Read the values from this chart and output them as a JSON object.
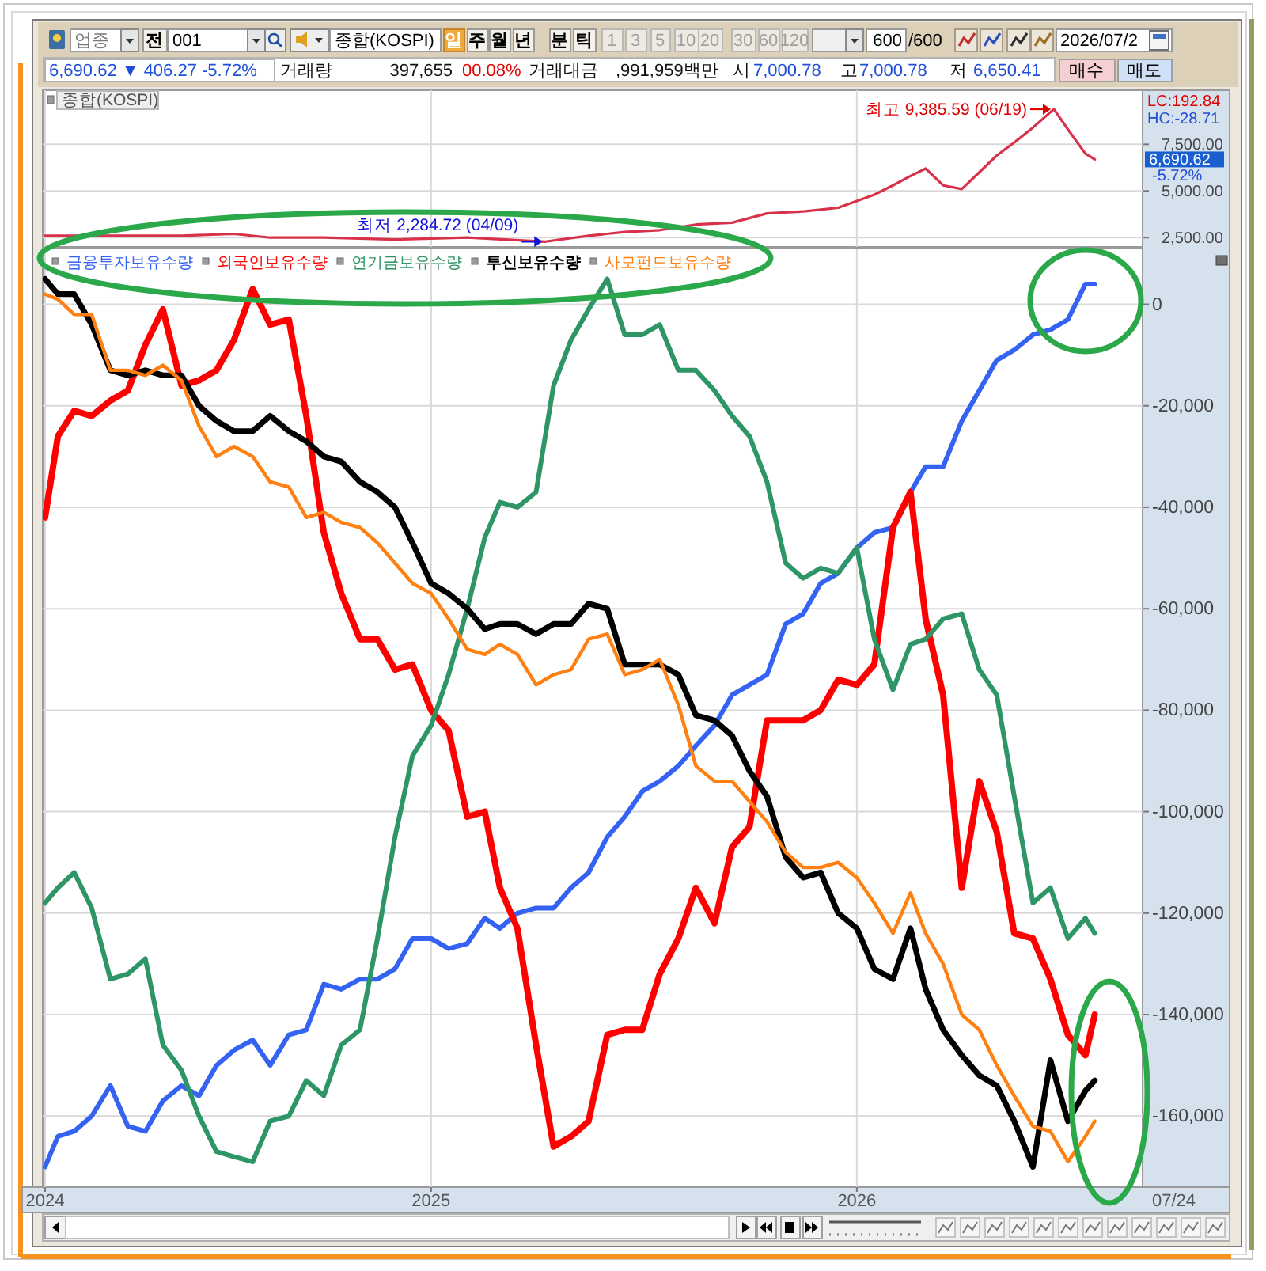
{
  "chart_data": [
    {
      "type": "line",
      "title": "종합(KOSPI)",
      "x": [
        "2024-02-05",
        "2024-04-01",
        "2024-06-01",
        "2024-07-16",
        "2024-08-16",
        "2024-10-01",
        "2024-12-01",
        "2025-02-01",
        "2025-04-09",
        "2025-05-16",
        "2025-06-16",
        "2025-07-16",
        "2025-08-16",
        "2025-09-16",
        "2025-10-16",
        "2025-11-16",
        "2025-12-16",
        "2026-01-16",
        "2026-02-01",
        "2026-02-16",
        "2026-03-01",
        "2026-03-16",
        "2026-04-01",
        "2026-04-16",
        "2026-05-01",
        "2026-05-16",
        "2026-06-01",
        "2026-06-19",
        "2026-07-01",
        "2026-07-16",
        "2026-07-24"
      ],
      "series": [
        {
          "color": "#d8314a",
          "values": [
            2600,
            2600,
            2600,
            2700,
            2500,
            2500,
            2400,
            2500,
            2284.72,
            2600,
            2800,
            2900,
            3200,
            3300,
            3800,
            3900,
            4100,
            4800,
            5300,
            5800,
            6200,
            5300,
            5100,
            6000,
            6900,
            7600,
            8400,
            9385.59,
            8300,
            7000,
            6690.62
          ]
        }
      ],
      "xlim": [
        "2024-02-03",
        "2026-09-03"
      ],
      "xticks": [
        {
          "value": "2024-02-05",
          "label": null
        },
        {
          "value": "2025-01-01",
          "label": null
        },
        {
          "value": "2026-01-01",
          "label": null
        }
      ],
      "ylim": [
        2000,
        10400
      ],
      "yticks": [
        {
          "value": 2500,
          "label": "2,500.00"
        },
        {
          "value": 5000,
          "label": "5,000.00"
        },
        {
          "value": 7500,
          "label": "7,500.00"
        }
      ],
      "grid": true,
      "tick_labels": "y",
      "annotations": [
        "업종",
        "전",
        "001",
        "종합(KOSPI)",
        "일",
        "주",
        "월",
        "년",
        "분",
        "틱",
        "1",
        "3",
        "5",
        "10",
        "20",
        "30",
        "60",
        "120",
        "600",
        "/600",
        "2026/07/2",
        "6,690.62 ▼ 406.27 -5.72%",
        "거래량",
        "397,655",
        "00.08%",
        "거래대금",
        ",991,959백만",
        "시",
        "7,000.78",
        "고",
        "7,000.78",
        "저",
        "6,650.41",
        "매수",
        "매도",
        "LC:192.84",
        "HC:-28.71",
        "6,690.62",
        "-5.72%",
        {
          "text": "최고 9,385.59 (06/19)",
          "x": "2026-06-19",
          "y": 9385.59
        },
        {
          "text": "최저 2,284.72 (04/09)",
          "x": "2025-04-09",
          "y": 2284.72
        }
      ]
    },
    {
      "type": "line",
      "x": [
        "2024-02-05",
        "2024-02-16",
        "2024-03-01",
        "2024-03-16",
        "2024-04-01",
        "2024-04-16",
        "2024-05-01",
        "2024-05-16",
        "2024-06-01",
        "2024-06-16",
        "2024-07-01",
        "2024-07-16",
        "2024-08-01",
        "2024-08-16",
        "2024-09-01",
        "2024-09-16",
        "2024-10-01",
        "2024-10-16",
        "2024-11-01",
        "2024-11-16",
        "2024-12-01",
        "2024-12-16",
        "2025-01-01",
        "2025-01-16",
        "2025-02-01",
        "2025-02-16",
        "2025-03-01",
        "2025-03-16",
        "2025-04-01",
        "2025-04-16",
        "2025-05-01",
        "2025-05-16",
        "2025-06-01",
        "2025-06-16",
        "2025-07-01",
        "2025-07-16",
        "2025-08-01",
        "2025-08-16",
        "2025-09-01",
        "2025-09-16",
        "2025-10-01",
        "2025-10-16",
        "2025-11-01",
        "2025-11-16",
        "2025-12-01",
        "2025-12-16",
        "2026-01-01",
        "2026-01-16",
        "2026-02-01",
        "2026-02-16",
        "2026-03-01",
        "2026-03-16",
        "2026-04-01",
        "2026-04-16",
        "2026-05-01",
        "2026-05-16",
        "2026-06-01",
        "2026-06-16",
        "2026-07-01",
        "2026-07-16",
        "2026-07-24"
      ],
      "series": [
        {
          "name": "금융투자보유수량",
          "color": "#3462f2",
          "values": [
            -170000,
            -164000,
            -163000,
            -160000,
            -154000,
            -162000,
            -163000,
            -157000,
            -154000,
            -156000,
            -150000,
            -147000,
            -145000,
            -150000,
            -144000,
            -143000,
            -134000,
            -135000,
            -133000,
            -133000,
            -131000,
            -125000,
            -125000,
            -127000,
            -126000,
            -121000,
            -123000,
            -120000,
            -119000,
            -119000,
            -115000,
            -112000,
            -105000,
            -101000,
            -96000,
            -94000,
            -91000,
            -87000,
            -83000,
            -77000,
            -75000,
            -73000,
            -63000,
            -61000,
            -55000,
            -53000,
            -48000,
            -45000,
            -44000,
            -37000,
            -32000,
            -32000,
            -23000,
            -17000,
            -11000,
            -9000,
            -6000,
            -5000,
            -3000,
            4000,
            4000
          ]
        },
        {
          "name": "외국인보유수량",
          "color": "#ff0000",
          "values": [
            -42000,
            -26000,
            -21000,
            -22000,
            -19000,
            -17000,
            -8000,
            -1000,
            -16000,
            -15000,
            -13000,
            -7000,
            3000,
            -4000,
            -3000,
            -22000,
            -45000,
            -57000,
            -66000,
            -66000,
            -72000,
            -71000,
            -80000,
            -84000,
            -101000,
            -100000,
            -115000,
            -123000,
            -146000,
            -166000,
            -164000,
            -161000,
            -144000,
            -143000,
            -143000,
            -132000,
            -125000,
            -115000,
            -122000,
            -107000,
            -103000,
            -82000,
            -82000,
            -82000,
            -80000,
            -74000,
            -75000,
            -71000,
            -44000,
            -37000,
            -62000,
            -77000,
            -115000,
            -94000,
            -104000,
            -124000,
            -125000,
            -133000,
            -144000,
            -148000,
            -140000
          ]
        },
        {
          "name": "연기금보유수량",
          "color": "#2e9566",
          "values": [
            -118000,
            -115000,
            -112000,
            -119000,
            -133000,
            -132000,
            -129000,
            -146000,
            -151000,
            -160000,
            -167000,
            -168000,
            -169000,
            -161000,
            -160000,
            -153000,
            -156000,
            -146000,
            -143000,
            -125000,
            -105000,
            -89000,
            -83000,
            -73000,
            -60000,
            -46000,
            -39000,
            -40000,
            -37000,
            -16000,
            -7000,
            -1000,
            5000,
            -6000,
            -6000,
            -4000,
            -13000,
            -13000,
            -17000,
            -22000,
            -26000,
            -35000,
            -51000,
            -54000,
            -52000,
            -53000,
            -48000,
            -66000,
            -76000,
            -67000,
            -66000,
            -62000,
            -61000,
            -72000,
            -77000,
            -97000,
            -118000,
            -115000,
            -125000,
            -121000,
            -124000
          ]
        },
        {
          "name": "투신보유수량",
          "color": "#000000",
          "values": [
            5000,
            2000,
            2000,
            -4000,
            -13000,
            -14000,
            -13000,
            -14000,
            -14000,
            -20000,
            -23000,
            -25000,
            -25000,
            -22000,
            -25000,
            -27000,
            -30000,
            -31000,
            -35000,
            -37000,
            -40000,
            -47000,
            -55000,
            -57000,
            -60000,
            -64000,
            -63000,
            -63000,
            -65000,
            -63000,
            -63000,
            -59000,
            -60000,
            -71000,
            -71000,
            -71000,
            -73000,
            -81000,
            -82000,
            -85000,
            -92000,
            -97000,
            -109000,
            -113000,
            -112000,
            -120000,
            -123000,
            -131000,
            -133000,
            -123000,
            -135000,
            -143000,
            -148000,
            -152000,
            -154000,
            -161000,
            -170000,
            -149000,
            -161000,
            -155000,
            -153000
          ]
        },
        {
          "name": "사모펀드보유수량",
          "color": "#ff7f10",
          "values": [
            2000,
            1000,
            -2000,
            -2000,
            -13000,
            -13000,
            -14000,
            -12000,
            -15000,
            -24000,
            -30000,
            -28000,
            -30000,
            -35000,
            -36000,
            -42000,
            -41000,
            -43000,
            -44000,
            -47000,
            -51000,
            -55000,
            -57000,
            -62000,
            -68000,
            -69000,
            -67000,
            -69000,
            -75000,
            -73000,
            -72000,
            -66000,
            -65000,
            -73000,
            -72000,
            -70000,
            -79000,
            -91000,
            -94000,
            -94000,
            -98000,
            -102000,
            -108000,
            -111000,
            -111000,
            -110000,
            -113000,
            -118000,
            -124000,
            -116000,
            -124000,
            -130000,
            -140000,
            -143000,
            -150000,
            -156000,
            -162000,
            -163000,
            -169000,
            -164000,
            -161000
          ]
        }
      ],
      "xlim": [
        "2024-02-03",
        "2026-09-03"
      ],
      "xticks": [
        {
          "value": "2024-02-05",
          "label": "2024"
        },
        {
          "value": "2025-01-01",
          "label": "2025"
        },
        {
          "value": "2026-01-01",
          "label": "2026"
        }
      ],
      "ylim": [
        -174000,
        11000
      ],
      "yticks": [
        0,
        {
          "value": -20000,
          "label": "-20,000"
        },
        {
          "value": -40000,
          "label": "-40,000"
        },
        {
          "value": -60000,
          "label": "-60,000"
        },
        {
          "value": -80000,
          "label": "-80,000"
        },
        {
          "value": -100000,
          "label": "-100,000"
        },
        {
          "value": -120000,
          "label": "-120,000"
        },
        {
          "value": -140000,
          "label": "-140,000"
        },
        {
          "value": -160000,
          "label": "-160,000"
        }
      ],
      "grid": true,
      "legend": "top left",
      "annotations": [
        "07/24"
      ]
    }
  ]
}
